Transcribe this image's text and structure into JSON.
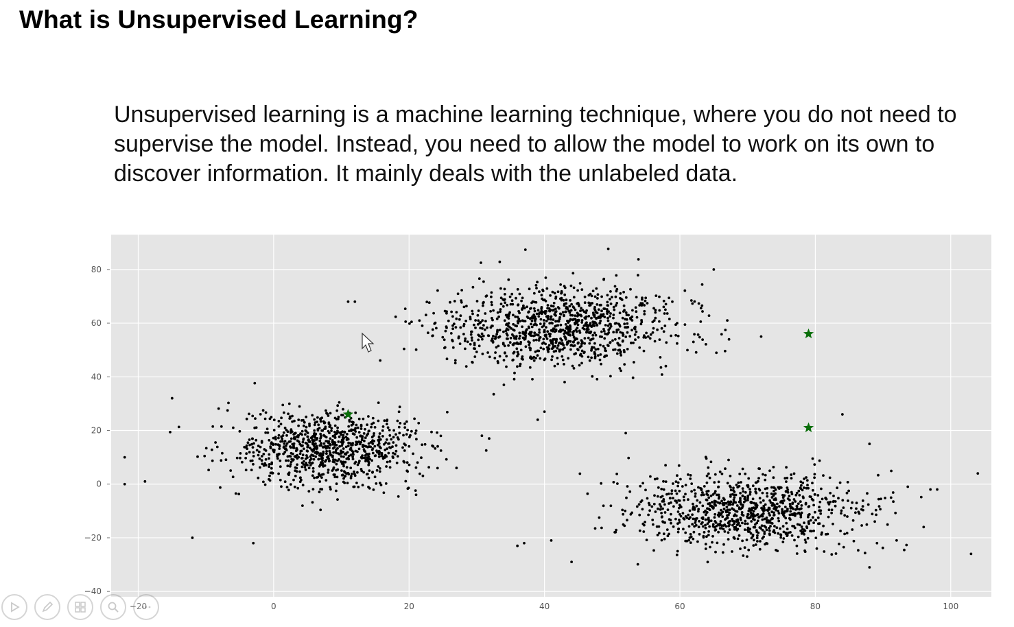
{
  "slide": {
    "title": "What is Unsupervised Learning?",
    "body": "Unsupervised learning is a machine learning technique, where you do not need to supervise the model. Instead, you need to allow the model to work on its own to discover information. It mainly deals with the unlabeled data."
  },
  "toolbar": {
    "buttons": [
      "play-icon",
      "pen-icon",
      "slides-grid-icon",
      "zoom-icon",
      "more-icon"
    ]
  },
  "chart_data": {
    "type": "scatter",
    "title": "",
    "xlabel": "",
    "ylabel": "",
    "xlim": [
      -24,
      106
    ],
    "ylim": [
      -42,
      93
    ],
    "xticks": [
      -20,
      0,
      20,
      40,
      60,
      80,
      100
    ],
    "yticks": [
      -40,
      -20,
      0,
      20,
      40,
      60,
      80
    ],
    "grid": true,
    "background": "#e5e5e5",
    "point_color": "#000000",
    "centroid_color": "#0a6e0a",
    "clusters": [
      {
        "center": [
          8,
          13
        ],
        "spread": [
          7.0,
          7.0
        ],
        "count": 900
      },
      {
        "center": [
          42,
          59
        ],
        "spread": [
          8.5,
          7.5
        ],
        "count": 1050
      },
      {
        "center": [
          70,
          -10
        ],
        "spread": [
          8.5,
          7.0
        ],
        "count": 950
      }
    ],
    "centroids": [
      {
        "x": 11,
        "y": 26
      },
      {
        "x": 79,
        "y": 56
      },
      {
        "x": 79,
        "y": 21
      }
    ],
    "outliers": [
      {
        "x": -22,
        "y": 10
      },
      {
        "x": -22,
        "y": 0
      },
      {
        "x": -19,
        "y": 1
      },
      {
        "x": -15,
        "y": 32
      },
      {
        "x": -12,
        "y": -20
      },
      {
        "x": -3,
        "y": -22
      },
      {
        "x": 11,
        "y": 68
      },
      {
        "x": 12,
        "y": 68
      },
      {
        "x": 36,
        "y": -23
      },
      {
        "x": 37,
        "y": -22
      },
      {
        "x": 41,
        "y": -21
      },
      {
        "x": 44,
        "y": -29
      },
      {
        "x": 40,
        "y": 27
      },
      {
        "x": 39,
        "y": 24
      },
      {
        "x": 62,
        "y": 53
      },
      {
        "x": 72,
        "y": 55
      },
      {
        "x": 67,
        "y": 61
      },
      {
        "x": 65,
        "y": 80
      },
      {
        "x": 97,
        "y": -2
      },
      {
        "x": 98,
        "y": -2
      },
      {
        "x": 104,
        "y": 4
      },
      {
        "x": 103,
        "y": -26
      },
      {
        "x": 88,
        "y": -31
      },
      {
        "x": 84,
        "y": 26
      },
      {
        "x": 88,
        "y": 15
      },
      {
        "x": 96,
        "y": -16
      },
      {
        "x": 52,
        "y": 19
      },
      {
        "x": 34,
        "y": 37
      }
    ]
  }
}
